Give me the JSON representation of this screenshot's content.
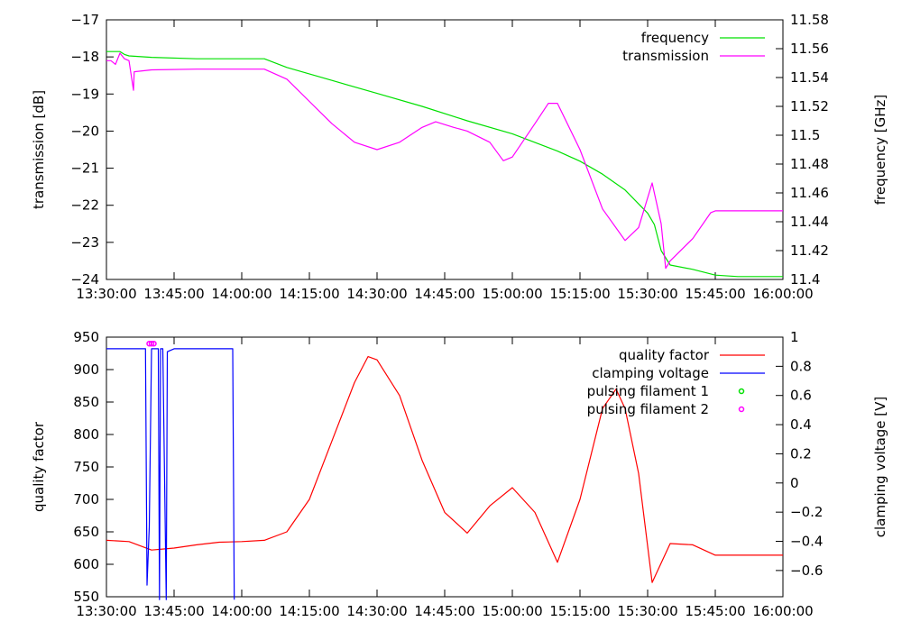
{
  "chart_data": [
    {
      "type": "line",
      "title": "",
      "xlabel": "",
      "ylabel": "transmission [dB]",
      "y2label": "frequency [GHz]",
      "x_ticks": [
        "13:30:00",
        "13:45:00",
        "14:00:00",
        "14:15:00",
        "14:30:00",
        "14:45:00",
        "15:00:00",
        "15:15:00",
        "15:30:00",
        "15:45:00",
        "16:00:00"
      ],
      "y_ticks": [
        "-24",
        "-23",
        "-22",
        "-21",
        "-20",
        "-19",
        "-18",
        "-17"
      ],
      "y2_ticks": [
        "11.4",
        "11.42",
        "11.44",
        "11.46",
        "11.48",
        "11.5",
        "11.52",
        "11.54",
        "11.56",
        "11.58"
      ],
      "xlim": [
        "13:30:00",
        "16:00:00"
      ],
      "ylim": [
        -24,
        -17
      ],
      "y2lim": [
        11.4,
        11.58
      ],
      "legend_position": "top-right",
      "series": [
        {
          "name": "frequency",
          "axis": "y2",
          "color": "#00e000",
          "points": [
            [
              "13:30:00",
              11.558
            ],
            [
              "13:31:00",
              11.558
            ],
            [
              "13:33:00",
              11.558
            ],
            [
              "13:34:00",
              11.556
            ],
            [
              "13:35:00",
              11.555
            ],
            [
              "13:40:00",
              11.554
            ],
            [
              "13:50:00",
              11.553
            ],
            [
              "14:00:00",
              11.553
            ],
            [
              "14:05:00",
              11.553
            ],
            [
              "14:10:00",
              11.547
            ],
            [
              "14:20:00",
              11.538
            ],
            [
              "14:30:00",
              11.529
            ],
            [
              "14:40:00",
              11.52
            ],
            [
              "14:50:00",
              11.51
            ],
            [
              "15:00:00",
              11.501
            ],
            [
              "15:10:00",
              11.489
            ],
            [
              "15:15:00",
              11.482
            ],
            [
              "15:20:00",
              11.473
            ],
            [
              "15:25:00",
              11.462
            ],
            [
              "15:30:00",
              11.446
            ],
            [
              "15:31:30",
              11.438
            ],
            [
              "15:33:00",
              11.42
            ],
            [
              "15:35:00",
              11.41
            ],
            [
              "15:40:00",
              11.407
            ],
            [
              "15:45:00",
              11.403
            ],
            [
              "15:50:00",
              11.402
            ],
            [
              "16:00:00",
              11.402
            ]
          ]
        },
        {
          "name": "transmission",
          "axis": "y",
          "color": "#ff00ff",
          "points": [
            [
              "13:30:00",
              -18.1
            ],
            [
              "13:31:00",
              -18.1
            ],
            [
              "13:32:00",
              -18.2
            ],
            [
              "13:33:00",
              -17.9
            ],
            [
              "13:34:00",
              -18.05
            ],
            [
              "13:35:00",
              -18.1
            ],
            [
              "13:36:00",
              -18.9
            ],
            [
              "13:36:10",
              -18.4
            ],
            [
              "13:40:00",
              -18.35
            ],
            [
              "13:50:00",
              -18.33
            ],
            [
              "14:00:00",
              -18.33
            ],
            [
              "14:05:00",
              -18.33
            ],
            [
              "14:10:00",
              -18.6
            ],
            [
              "14:15:00",
              -19.2
            ],
            [
              "14:20:00",
              -19.8
            ],
            [
              "14:25:00",
              -20.3
            ],
            [
              "14:30:00",
              -20.5
            ],
            [
              "14:35:00",
              -20.3
            ],
            [
              "14:40:00",
              -19.9
            ],
            [
              "14:43:00",
              -19.75
            ],
            [
              "14:47:00",
              -19.9
            ],
            [
              "14:50:00",
              -20.0
            ],
            [
              "14:55:00",
              -20.3
            ],
            [
              "14:58:00",
              -20.8
            ],
            [
              "15:00:00",
              -20.7
            ],
            [
              "15:05:00",
              -19.8
            ],
            [
              "15:08:00",
              -19.25
            ],
            [
              "15:10:00",
              -19.25
            ],
            [
              "15:15:00",
              -20.5
            ],
            [
              "15:20:00",
              -22.1
            ],
            [
              "15:25:00",
              -22.95
            ],
            [
              "15:28:00",
              -22.6
            ],
            [
              "15:31:00",
              -21.4
            ],
            [
              "15:33:00",
              -22.5
            ],
            [
              "15:34:00",
              -23.7
            ],
            [
              "15:35:00",
              -23.5
            ],
            [
              "15:40:00",
              -22.9
            ],
            [
              "15:44:00",
              -22.2
            ],
            [
              "15:45:00",
              -22.15
            ],
            [
              "16:00:00",
              -22.15
            ]
          ]
        }
      ]
    },
    {
      "type": "line",
      "title": "",
      "xlabel": "",
      "ylabel": "quality factor",
      "y2label": "clamping voltage [V]",
      "x_ticks": [
        "13:30:00",
        "13:45:00",
        "14:00:00",
        "14:15:00",
        "14:30:00",
        "14:45:00",
        "15:00:00",
        "15:15:00",
        "15:30:00",
        "15:45:00",
        "16:00:00"
      ],
      "y_ticks": [
        "550",
        "600",
        "650",
        "700",
        "750",
        "800",
        "850",
        "900",
        "950"
      ],
      "y2_ticks": [
        "-0.6",
        "-0.4",
        "-0.2",
        "0",
        "0.2",
        "0.4",
        "0.6",
        "0.8",
        "1"
      ],
      "xlim": [
        "13:30:00",
        "16:00:00"
      ],
      "ylim": [
        550,
        950
      ],
      "y2lim": [
        -0.78,
        1.0
      ],
      "legend_position": "top-right",
      "series": [
        {
          "name": "quality factor",
          "axis": "y",
          "color": "#ff0000",
          "points": [
            [
              "13:30:00",
              637
            ],
            [
              "13:35:00",
              635
            ],
            [
              "13:40:00",
              622
            ],
            [
              "13:45:00",
              625
            ],
            [
              "13:50:00",
              630
            ],
            [
              "13:55:00",
              634
            ],
            [
              "14:00:00",
              635
            ],
            [
              "14:05:00",
              637
            ],
            [
              "14:10:00",
              650
            ],
            [
              "14:15:00",
              700
            ],
            [
              "14:20:00",
              790
            ],
            [
              "14:25:00",
              880
            ],
            [
              "14:28:00",
              920
            ],
            [
              "14:30:00",
              915
            ],
            [
              "14:35:00",
              860
            ],
            [
              "14:40:00",
              760
            ],
            [
              "14:45:00",
              680
            ],
            [
              "14:50:00",
              648
            ],
            [
              "14:55:00",
              690
            ],
            [
              "15:00:00",
              718
            ],
            [
              "15:05:00",
              680
            ],
            [
              "15:10:00",
              603
            ],
            [
              "15:15:00",
              700
            ],
            [
              "15:20:00",
              840
            ],
            [
              "15:23:00",
              870
            ],
            [
              "15:25:00",
              840
            ],
            [
              "15:28:00",
              740
            ],
            [
              "15:31:00",
              572
            ],
            [
              "15:35:00",
              632
            ],
            [
              "15:40:00",
              630
            ],
            [
              "15:45:00",
              614
            ],
            [
              "16:00:00",
              614
            ]
          ]
        },
        {
          "name": "clamping voltage",
          "axis": "y2",
          "color": "#0000ff",
          "points": [
            [
              "13:30:00",
              0.92
            ],
            [
              "13:38:40",
              0.92
            ],
            [
              "13:39:00",
              -0.7
            ],
            [
              "13:39:30",
              -0.3
            ],
            [
              "13:40:00",
              0.92
            ],
            [
              "13:41:30",
              0.92
            ],
            [
              "13:41:45",
              -0.8
            ],
            [
              "13:42:00",
              0.92
            ],
            [
              "13:42:30",
              0.92
            ],
            [
              "13:43:15",
              -0.8
            ],
            [
              "13:43:30",
              0.9
            ],
            [
              "13:45:00",
              0.92
            ],
            [
              "13:58:00",
              0.92
            ],
            [
              "13:58:20",
              -0.8
            ]
          ]
        },
        {
          "name": "pulsing filament 1",
          "axis": "y",
          "color": "#00e000",
          "points": []
        },
        {
          "name": "pulsing filament 2",
          "axis": "y",
          "color": "#ff00ff",
          "points": [
            [
              "13:39:30",
              940
            ],
            [
              "13:40:00",
              940
            ],
            [
              "13:40:30",
              940
            ]
          ]
        }
      ]
    }
  ]
}
